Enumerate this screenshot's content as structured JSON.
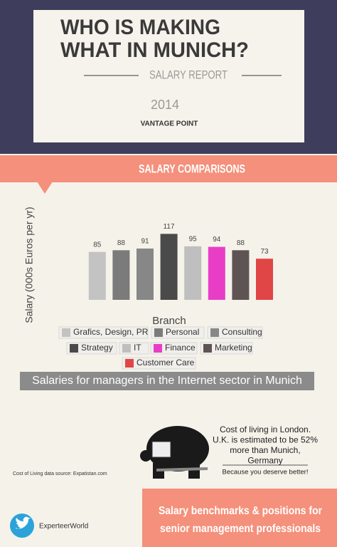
{
  "header": {
    "title_lines": [
      "WHO IS MAKING",
      "WHAT IN MUNICH?"
    ],
    "subtitle": "SALARY REPORT",
    "year": "2014",
    "brand": "VANTAGE POINT"
  },
  "section_title": "SALARY COMPARISONS",
  "chart_data": {
    "type": "bar",
    "y_label": "Salary (000s Euros per yr)",
    "x_label": "Branch",
    "categories": [
      "Grafics, Design, PR",
      "Personal",
      "Consulting",
      "Strategy",
      "IT",
      "Finance",
      "Marketing",
      "Customer Care"
    ],
    "values": [
      85,
      88,
      91,
      117,
      95,
      94,
      88,
      73
    ],
    "colors": [
      "#c4c3c3",
      "#7b7b7b",
      "#878787",
      "#4a4a4a",
      "#c0bfbf",
      "#e83ec6",
      "#5e5454",
      "#e04646"
    ],
    "ylim": [
      0,
      120
    ],
    "legend": true
  },
  "caption": "Salaries for managers in the Internet sector in Munich",
  "cost_note": {
    "lines": [
      "Cost of living in London.",
      "U.K. is estimated to be 52%",
      "more than Munich,",
      "Germany"
    ],
    "tagline": "Because you deserve better!"
  },
  "source": "Cost of Living data source: Expatistan.com",
  "footer": {
    "handle": "ExperteerWorld",
    "banner_lines": [
      "Salary benchmarks & positions for",
      "senior management professionals"
    ]
  }
}
